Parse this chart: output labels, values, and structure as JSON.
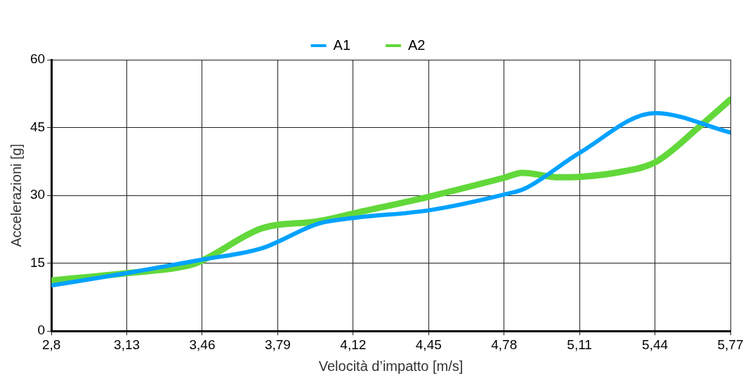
{
  "chart_data": {
    "type": "line",
    "xlabel": "Velocità d’impatto [m/s]",
    "ylabel": "Accelerazioni [g]",
    "xlim": [
      2.8,
      5.77
    ],
    "xticks": [
      {
        "value": 2.8,
        "label": "2,8"
      },
      {
        "value": 3.13,
        "label": "3,13"
      },
      {
        "value": 3.46,
        "label": "3,46"
      },
      {
        "value": 3.79,
        "label": "3,79"
      },
      {
        "value": 4.12,
        "label": "4,12"
      },
      {
        "value": 4.45,
        "label": "4,45"
      },
      {
        "value": 4.78,
        "label": "4,78"
      },
      {
        "value": 5.11,
        "label": "5,11"
      },
      {
        "value": 5.44,
        "label": "5,44"
      },
      {
        "value": 5.77,
        "label": "5,77"
      }
    ],
    "ylim": [
      0,
      60
    ],
    "yticks": [
      0,
      15,
      30,
      45,
      60
    ],
    "grid": true,
    "legend": "top",
    "marker": "none",
    "line_style": "solid",
    "series": [
      {
        "name": "A1",
        "color": "#00a2ff",
        "x": [
          2.8,
          3.13,
          3.46,
          3.72,
          3.97,
          4.12,
          4.45,
          4.78,
          4.87,
          5.11,
          5.44,
          5.77
        ],
        "values": [
          10.1,
          12.8,
          15.8,
          18.3,
          23.8,
          25,
          26.7,
          30.2,
          31.5,
          39.4,
          48.2,
          43.9
        ]
      },
      {
        "name": "A2",
        "color": "#62d83a",
        "x": [
          2.8,
          3.13,
          3.4,
          3.46,
          3.72,
          3.97,
          4.12,
          4.45,
          4.78,
          4.86,
          5.02,
          5.11,
          5.3,
          5.44,
          5.63,
          5.77
        ],
        "values": [
          11.2,
          12.8,
          14.5,
          15.6,
          22.7,
          24.3,
          26,
          29.7,
          33.9,
          35,
          34,
          34.1,
          35.3,
          37.3,
          45,
          51.2
        ]
      }
    ]
  }
}
